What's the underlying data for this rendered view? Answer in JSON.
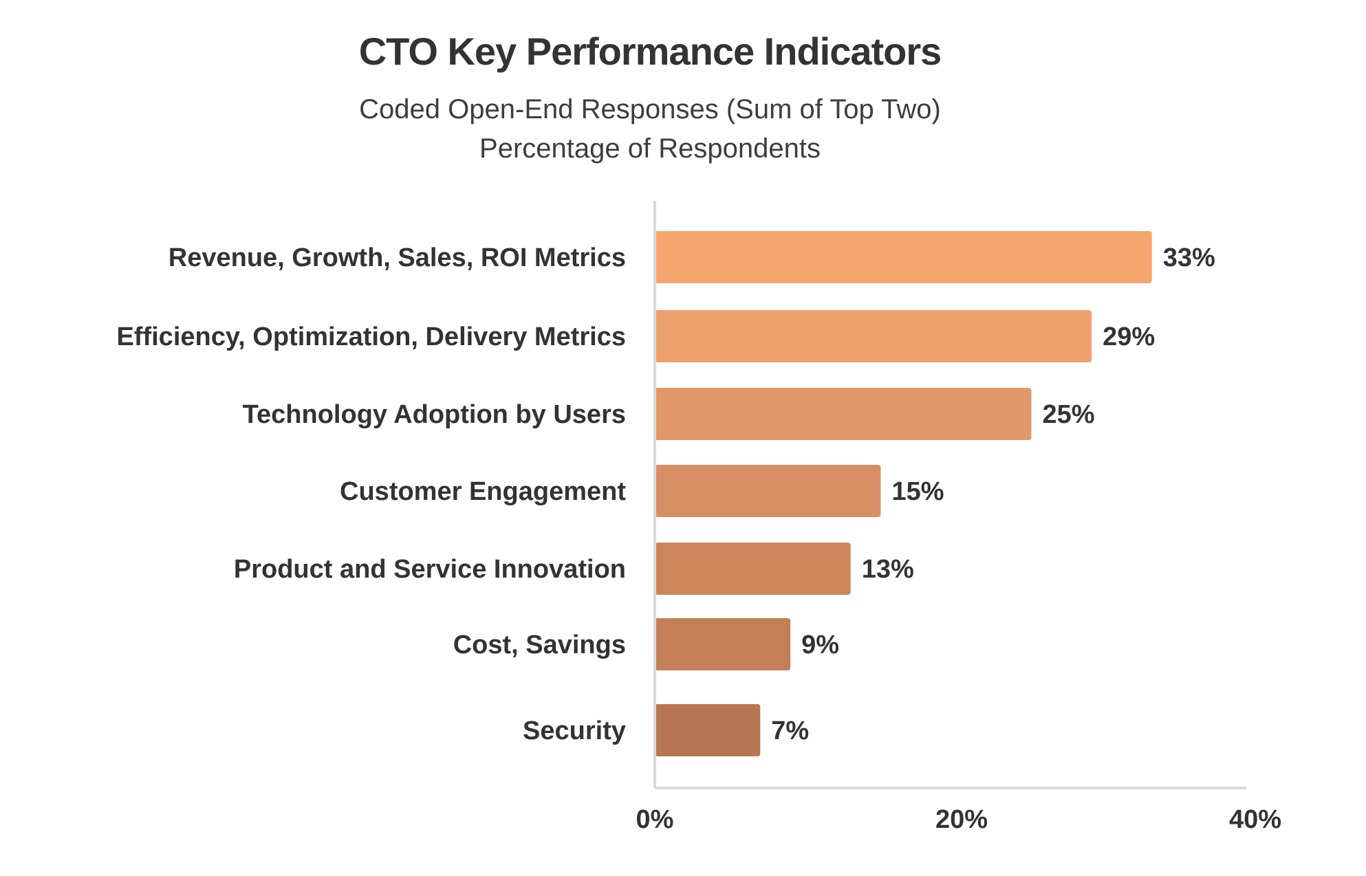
{
  "chart_data": {
    "type": "bar",
    "orientation": "horizontal",
    "title": "CTO Key Performance Indicators",
    "subtitle_lines": [
      "Coded Open-End Responses (Sum of Top Two)",
      "Percentage of Respondents"
    ],
    "categories": [
      "Revenue, Growth, Sales, ROI Metrics",
      "Efficiency, Optimization, Delivery Metrics",
      "Technology Adoption by Users",
      "Customer Engagement",
      "Product and Service Innovation",
      "Cost, Savings",
      "Security"
    ],
    "values": [
      33,
      29,
      25,
      15,
      13,
      9,
      7
    ],
    "value_labels": [
      "33%",
      "29%",
      "25%",
      "15%",
      "13%",
      "9%",
      "7%"
    ],
    "bar_colors": [
      "#f6a66c",
      "#eda06b",
      "#e3966a",
      "#d78e64",
      "#cd865c",
      "#c47f58",
      "#b97655"
    ],
    "xlim": [
      0,
      40
    ],
    "x_ticks": [
      0,
      20,
      40
    ],
    "x_tick_labels": [
      "0%",
      "20%",
      "40%"
    ],
    "grid": false,
    "axis_color": "#d9d9d9"
  }
}
